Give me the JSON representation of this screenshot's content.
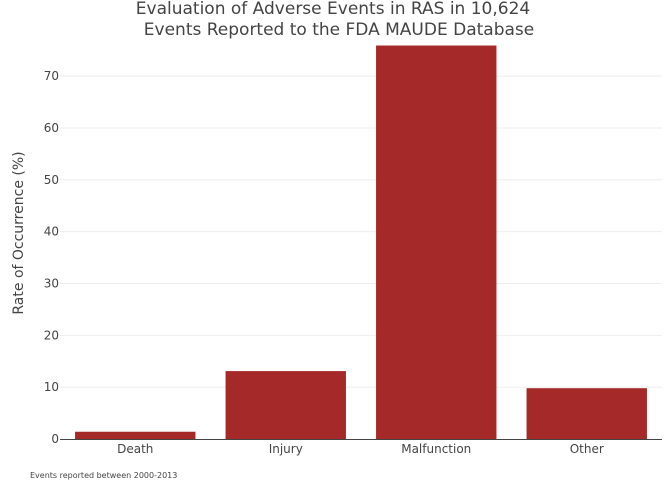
{
  "chart_data": {
    "type": "bar",
    "title_lines": [
      "Evaluation of Adverse Events in RAS in 10,624",
      "Events Reported to the FDA MAUDE Database"
    ],
    "categories": [
      "Death",
      "Injury",
      "Malfunction",
      "Other"
    ],
    "values": [
      1.4,
      13.1,
      75.9,
      9.8
    ],
    "xlabel": "",
    "ylabel": "Rate of Occurrence (%)",
    "ylim": [
      0,
      76
    ],
    "yticks": [
      0,
      10,
      20,
      30,
      40,
      50,
      60,
      70
    ],
    "grid": true,
    "bar_color": "#a6292a",
    "gridline_color": "#eeeeee",
    "annotation": "Events reported between 2000-2013"
  }
}
